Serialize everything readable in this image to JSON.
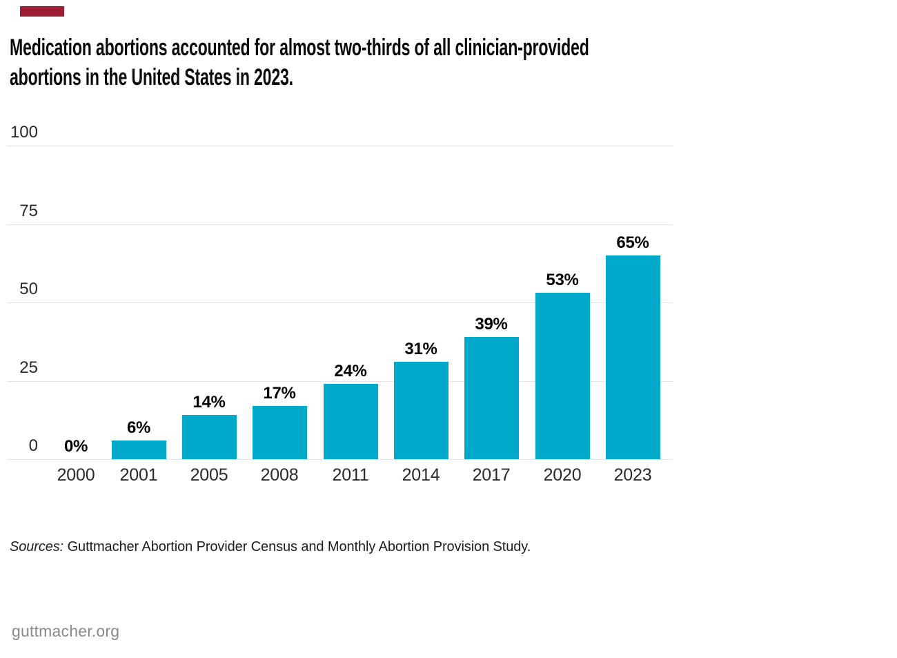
{
  "page": {
    "background": "#ffffff",
    "accent_color": "#9b1b30"
  },
  "header": {
    "title_line1": "Medication abortions accounted for almost two-thirds of all clinician-provided",
    "title_line2": "abortions in the United States in 2023."
  },
  "chart_data": {
    "type": "bar",
    "title": "Medication abortions accounted for almost two-thirds of all clinician-provided abortions in the United States in 2023.",
    "categories": [
      "2000",
      "2001",
      "2005",
      "2008",
      "2011",
      "2014",
      "2017",
      "2020",
      "2023"
    ],
    "values": [
      0,
      6,
      14,
      17,
      24,
      31,
      39,
      53,
      65
    ],
    "bar_labels": [
      "0%",
      "6%",
      "14%",
      "17%",
      "24%",
      "31%",
      "39%",
      "53%",
      "65%"
    ],
    "xlabel": "",
    "ylabel": "",
    "ylim": [
      0,
      100
    ],
    "yticks": [
      0,
      25,
      50,
      75,
      100
    ],
    "grid": true,
    "legend": "none",
    "bar_color": "#00a8ca",
    "gridline_color": "#e4e4e4",
    "unit": "percent of all clinician-provided abortions"
  },
  "footer": {
    "sources_label": "Sources:",
    "sources_text": " Guttmacher Abortion Provider Census and Monthly Abortion Provision Study.",
    "website": "guttmacher.org"
  }
}
